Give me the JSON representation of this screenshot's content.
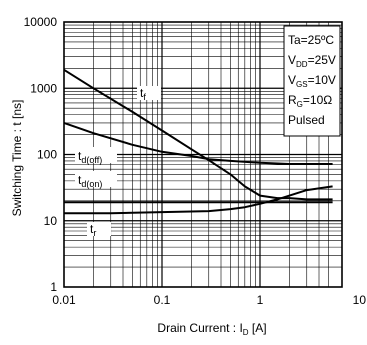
{
  "chart_data": {
    "type": "line",
    "title": "",
    "xlabel": "Drain Current : I",
    "xlabel_sub": "D",
    "xlabel_unit": " [A]",
    "ylabel": "Switching Time : t [ns]",
    "x_scale": "log",
    "y_scale": "log",
    "xlim": [
      0.01,
      6
    ],
    "ylim": [
      1,
      10000
    ],
    "grid": true,
    "x_ticks": [
      {
        "value": 0.01,
        "label": "0.01"
      },
      {
        "value": 0.1,
        "label": "0.1"
      },
      {
        "value": 1,
        "label": "1"
      },
      {
        "value": 10,
        "label": "10"
      }
    ],
    "y_ticks": [
      {
        "value": 1,
        "label": "1"
      },
      {
        "value": 10,
        "label": "10"
      },
      {
        "value": 100,
        "label": "100"
      },
      {
        "value": 1000,
        "label": "1000"
      },
      {
        "value": 10000,
        "label": "10000"
      }
    ],
    "conditions": [
      {
        "main": "Ta=25ºC",
        "sub": "",
        "rest": ""
      },
      {
        "main": "V",
        "sub": "DD",
        "rest": "=25V"
      },
      {
        "main": "V",
        "sub": "GS",
        "rest": "=10V"
      },
      {
        "main": "R",
        "sub": "G",
        "rest": "=10Ω"
      },
      {
        "main": "Pulsed",
        "sub": "",
        "rest": ""
      }
    ],
    "series": [
      {
        "name": "tf",
        "label_main": "t",
        "label_sub": "f",
        "x": [
          0.01,
          0.02,
          0.05,
          0.1,
          0.2,
          0.3,
          0.5,
          0.7,
          1,
          1.5,
          2,
          3,
          5,
          5.5
        ],
        "y": [
          1900,
          1000,
          440,
          230,
          120,
          82,
          50,
          33,
          24,
          22,
          22,
          21,
          21,
          21
        ]
      },
      {
        "name": "td(off)",
        "label_main": "t",
        "label_sub": "d(off)",
        "x": [
          0.01,
          0.02,
          0.05,
          0.1,
          0.2,
          0.3,
          0.5,
          1,
          2,
          5.5
        ],
        "y": [
          300,
          210,
          140,
          110,
          95,
          85,
          80,
          75,
          72,
          72
        ]
      },
      {
        "name": "td(on)",
        "label_main": "t",
        "label_sub": "d(on)",
        "x": [
          0.01,
          0.05,
          0.1,
          0.3,
          0.5,
          1,
          2,
          5.5
        ],
        "y": [
          19,
          19,
          19,
          19,
          19,
          19,
          19,
          19
        ]
      },
      {
        "name": "tr",
        "label_main": "t",
        "label_sub": "r",
        "x": [
          0.01,
          0.03,
          0.1,
          0.3,
          0.5,
          0.7,
          1,
          1.5,
          2,
          3,
          5.5
        ],
        "y": [
          13,
          13,
          13.5,
          14,
          15,
          16,
          18,
          21,
          24,
          29,
          33
        ]
      }
    ]
  }
}
